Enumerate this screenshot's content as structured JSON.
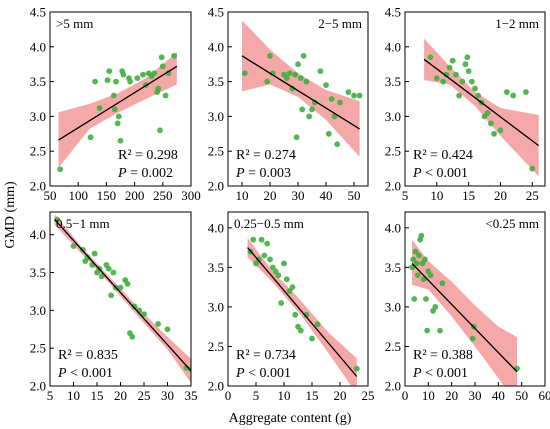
{
  "figure": {
    "ylabel": "GMD (mm)",
    "xlabel": "Aggregate content (g)",
    "colors": {
      "point": "#3fae3f",
      "line": "#000000",
      "band": "#f28b8b"
    }
  },
  "chart_data": [
    {
      "type": "scatter",
      "label": ">5 mm",
      "xlim": [
        50,
        300
      ],
      "ylim": [
        2.0,
        4.5
      ],
      "xticks": [
        "50",
        "100",
        "150",
        "200",
        "250",
        "300"
      ],
      "yticks": [
        "2.0",
        "2.5",
        "3.0",
        "3.5",
        "4.0",
        "4.5"
      ],
      "r2": "R² = 0.298",
      "p": "P",
      "p_rest": " = 0.002",
      "fit": {
        "x": [
          65,
          275
        ],
        "y": [
          2.66,
          3.72
        ]
      },
      "band_upper": [
        [
          65,
          3.06
        ],
        [
          120,
          3.18
        ],
        [
          170,
          3.33
        ],
        [
          220,
          3.55
        ],
        [
          275,
          3.92
        ]
      ],
      "band_lower": [
        [
          65,
          2.26
        ],
        [
          120,
          2.82
        ],
        [
          170,
          3.05
        ],
        [
          220,
          3.25
        ],
        [
          275,
          3.46
        ]
      ],
      "points": [
        [
          68,
          2.24
        ],
        [
          122,
          2.7
        ],
        [
          130,
          3.5
        ],
        [
          138,
          3.12
        ],
        [
          152,
          3.52
        ],
        [
          155,
          3.65
        ],
        [
          163,
          3.3
        ],
        [
          165,
          3.1
        ],
        [
          167,
          3.5
        ],
        [
          170,
          2.9
        ],
        [
          172,
          3.0
        ],
        [
          175,
          2.65
        ],
        [
          178,
          3.65
        ],
        [
          180,
          3.6
        ],
        [
          190,
          3.55
        ],
        [
          192,
          3.5
        ],
        [
          205,
          3.55
        ],
        [
          215,
          3.6
        ],
        [
          220,
          3.45
        ],
        [
          225,
          3.62
        ],
        [
          230,
          3.58
        ],
        [
          235,
          3.62
        ],
        [
          240,
          3.35
        ],
        [
          242,
          3.4
        ],
        [
          245,
          2.8
        ],
        [
          248,
          3.85
        ],
        [
          250,
          3.72
        ],
        [
          255,
          3.3
        ],
        [
          260,
          3.62
        ],
        [
          270,
          3.87
        ]
      ]
    },
    {
      "type": "scatter",
      "label": "2−5 mm",
      "xlim": [
        5,
        55
      ],
      "ylim": [
        2.0,
        4.5
      ],
      "xticks": [
        "10",
        "20",
        "30",
        "40",
        "50"
      ],
      "yticks": [
        "2.0",
        "2.5",
        "3.0",
        "3.5",
        "4.0",
        "4.5"
      ],
      "r2": "R² = 0.274",
      "p": "P",
      "p_rest": " = 0.003",
      "fit": {
        "x": [
          10,
          52
        ],
        "y": [
          3.87,
          2.82
        ]
      },
      "band_upper": [
        [
          10,
          4.38
        ],
        [
          20,
          3.96
        ],
        [
          30,
          3.62
        ],
        [
          40,
          3.38
        ],
        [
          52,
          3.22
        ]
      ],
      "band_lower": [
        [
          10,
          3.36
        ],
        [
          20,
          3.46
        ],
        [
          30,
          3.28
        ],
        [
          40,
          2.95
        ],
        [
          52,
          2.42
        ]
      ],
      "points": [
        [
          11,
          3.62
        ],
        [
          19,
          3.5
        ],
        [
          20,
          3.87
        ],
        [
          21,
          3.62
        ],
        [
          25,
          3.6
        ],
        [
          26,
          3.55
        ],
        [
          27,
          3.62
        ],
        [
          28,
          3.4
        ],
        [
          29,
          3.6
        ],
        [
          29.5,
          2.7
        ],
        [
          30,
          3.75
        ],
        [
          31,
          3.55
        ],
        [
          31.5,
          3.1
        ],
        [
          32,
          3.87
        ],
        [
          33,
          3.5
        ],
        [
          34,
          3.0
        ],
        [
          35,
          3.1
        ],
        [
          36,
          3.2
        ],
        [
          38,
          3.65
        ],
        [
          40,
          3.45
        ],
        [
          41,
          2.75
        ],
        [
          42,
          3.25
        ],
        [
          43,
          3.0
        ],
        [
          44,
          2.6
        ],
        [
          45,
          3.2
        ],
        [
          48,
          3.35
        ],
        [
          50,
          3.3
        ],
        [
          52,
          3.3
        ]
      ]
    },
    {
      "type": "scatter",
      "label": "1−2 mm",
      "xlim": [
        5,
        27
      ],
      "ylim": [
        2.0,
        4.5
      ],
      "xticks": [
        "5",
        "10",
        "15",
        "20",
        "25"
      ],
      "yticks": [
        "2.0",
        "2.5",
        "3.0",
        "3.5",
        "4.0",
        "4.5"
      ],
      "r2": "R² = 0.424",
      "p": "P",
      "p_rest": " < 0.001",
      "fit": {
        "x": [
          8,
          26
        ],
        "y": [
          3.82,
          2.58
        ]
      },
      "band_upper": [
        [
          8,
          4.12
        ],
        [
          12,
          3.72
        ],
        [
          16,
          3.35
        ],
        [
          20,
          3.12
        ],
        [
          26,
          3.02
        ]
      ],
      "band_lower": [
        [
          8,
          3.52
        ],
        [
          12,
          3.46
        ],
        [
          16,
          3.15
        ],
        [
          20,
          2.72
        ],
        [
          26,
          2.14
        ]
      ],
      "points": [
        [
          9,
          3.85
        ],
        [
          10,
          3.55
        ],
        [
          11,
          3.5
        ],
        [
          11.5,
          3.6
        ],
        [
          12,
          3.7
        ],
        [
          12.5,
          3.8
        ],
        [
          13,
          3.6
        ],
        [
          13.5,
          3.3
        ],
        [
          14,
          3.5
        ],
        [
          14.5,
          3.75
        ],
        [
          14.8,
          3.85
        ],
        [
          15,
          3.65
        ],
        [
          15.5,
          3.5
        ],
        [
          16,
          3.4
        ],
        [
          16.5,
          3.3
        ],
        [
          17,
          3.2
        ],
        [
          17.5,
          3.0
        ],
        [
          18,
          3.05
        ],
        [
          18.5,
          2.9
        ],
        [
          19,
          2.75
        ],
        [
          20,
          2.8
        ],
        [
          21,
          3.35
        ],
        [
          22,
          3.3
        ],
        [
          24,
          3.35
        ],
        [
          25,
          2.25
        ]
      ]
    },
    {
      "type": "scatter",
      "label": "0.5−1 mm",
      "xlim": [
        5,
        35
      ],
      "ylim": [
        2.0,
        4.3
      ],
      "xticks": [
        "5",
        "10",
        "15",
        "20",
        "25",
        "30",
        "35"
      ],
      "yticks": [
        "2.0",
        "2.5",
        "3.0",
        "3.5",
        "4.0"
      ],
      "r2": "R² = 0.835",
      "p": "P",
      "p_rest": " < 0.001",
      "fit": {
        "x": [
          6,
          35
        ],
        "y": [
          4.2,
          2.2
        ]
      },
      "band_upper": [
        [
          6,
          4.27
        ],
        [
          12,
          3.82
        ],
        [
          18,
          3.42
        ],
        [
          24,
          3.02
        ],
        [
          30,
          2.65
        ],
        [
          35,
          2.36
        ]
      ],
      "band_lower": [
        [
          6,
          4.13
        ],
        [
          12,
          3.73
        ],
        [
          18,
          3.33
        ],
        [
          24,
          2.9
        ],
        [
          30,
          2.48
        ],
        [
          35,
          2.04
        ]
      ],
      "points": [
        [
          6.5,
          4.2
        ],
        [
          10,
          3.85
        ],
        [
          12,
          3.8
        ],
        [
          12.5,
          3.65
        ],
        [
          13,
          3.7
        ],
        [
          14,
          3.6
        ],
        [
          14.5,
          3.75
        ],
        [
          15,
          3.5
        ],
        [
          15.5,
          3.55
        ],
        [
          16,
          3.45
        ],
        [
          17,
          3.6
        ],
        [
          17.5,
          3.55
        ],
        [
          18,
          3.2
        ],
        [
          18.5,
          3.5
        ],
        [
          19,
          3.3
        ],
        [
          20,
          3.3
        ],
        [
          21,
          3.4
        ],
        [
          21.5,
          3.35
        ],
        [
          22,
          2.7
        ],
        [
          22.5,
          2.65
        ],
        [
          23,
          3.05
        ],
        [
          24,
          3.0
        ],
        [
          25,
          2.95
        ],
        [
          28,
          2.82
        ],
        [
          30,
          2.75
        ],
        [
          34,
          2.24
        ],
        [
          35,
          2.22
        ]
      ]
    },
    {
      "type": "scatter",
      "label": "0.25−0.5 mm",
      "xlim": [
        0,
        25
      ],
      "ylim": [
        2.0,
        4.2
      ],
      "xticks": [
        "0",
        "5",
        "10",
        "15",
        "20",
        "25"
      ],
      "yticks": [
        "2.0",
        "2.5",
        "3.0",
        "3.5",
        "4.0"
      ],
      "r2": "R² = 0.734",
      "p": "P",
      "p_rest": " < 0.001",
      "fit": {
        "x": [
          3.5,
          23
        ],
        "y": [
          3.75,
          2.12
        ]
      },
      "band_upper": [
        [
          3.5,
          3.87
        ],
        [
          8,
          3.45
        ],
        [
          13,
          3.08
        ],
        [
          18,
          2.67
        ],
        [
          23,
          2.35
        ]
      ],
      "band_lower": [
        [
          3.5,
          3.63
        ],
        [
          8,
          3.31
        ],
        [
          13,
          2.9
        ],
        [
          18,
          2.41
        ],
        [
          23,
          1.9
        ]
      ],
      "points": [
        [
          4,
          3.7
        ],
        [
          4.5,
          3.85
        ],
        [
          5,
          3.55
        ],
        [
          5.5,
          3.6
        ],
        [
          6,
          3.85
        ],
        [
          6.5,
          3.65
        ],
        [
          7,
          3.8
        ],
        [
          7.5,
          3.6
        ],
        [
          8,
          3.5
        ],
        [
          8.5,
          3.45
        ],
        [
          9,
          3.4
        ],
        [
          9.5,
          3.05
        ],
        [
          10,
          3.55
        ],
        [
          10.5,
          3.35
        ],
        [
          11,
          3.2
        ],
        [
          11.5,
          3.25
        ],
        [
          12,
          2.9
        ],
        [
          12.5,
          2.75
        ],
        [
          13,
          2.7
        ],
        [
          14,
          2.9
        ],
        [
          15,
          2.6
        ],
        [
          16,
          2.78
        ],
        [
          23,
          2.22
        ]
      ]
    },
    {
      "type": "scatter",
      "label": "<0.25 mm",
      "xlim": [
        0,
        60
      ],
      "ylim": [
        2.0,
        4.2
      ],
      "xticks": [
        "0",
        "10",
        "20",
        "30",
        "40",
        "50",
        "60"
      ],
      "yticks": [
        "2.0",
        "2.5",
        "3.0",
        "3.5",
        "4.0"
      ],
      "r2": "R² = 0.388",
      "p": "P",
      "p_rest": " < 0.001",
      "fit": {
        "x": [
          3,
          48
        ],
        "y": [
          3.55,
          2.18
        ]
      },
      "band_upper": [
        [
          3,
          3.85
        ],
        [
          10,
          3.58
        ],
        [
          20,
          3.32
        ],
        [
          30,
          3.02
        ],
        [
          40,
          2.75
        ],
        [
          48,
          2.62
        ]
      ],
      "band_lower": [
        [
          3,
          3.28
        ],
        [
          10,
          3.22
        ],
        [
          20,
          2.88
        ],
        [
          30,
          2.5
        ],
        [
          40,
          2.1
        ],
        [
          48,
          1.76
        ]
      ],
      "points": [
        [
          3,
          3.5
        ],
        [
          3.5,
          3.6
        ],
        [
          4,
          3.1
        ],
        [
          4.5,
          3.7
        ],
        [
          5,
          3.55
        ],
        [
          5.5,
          3.4
        ],
        [
          6,
          3.65
        ],
        [
          6.5,
          3.85
        ],
        [
          7,
          3.9
        ],
        [
          7.5,
          3.55
        ],
        [
          8,
          3.35
        ],
        [
          8.5,
          3.6
        ],
        [
          9,
          3.1
        ],
        [
          9.5,
          2.7
        ],
        [
          10,
          3.45
        ],
        [
          11,
          3.4
        ],
        [
          12,
          2.95
        ],
        [
          13,
          3.0
        ],
        [
          15,
          2.7
        ],
        [
          16,
          3.3
        ],
        [
          29,
          2.6
        ],
        [
          29.5,
          2.75
        ],
        [
          48,
          2.22
        ]
      ]
    }
  ]
}
